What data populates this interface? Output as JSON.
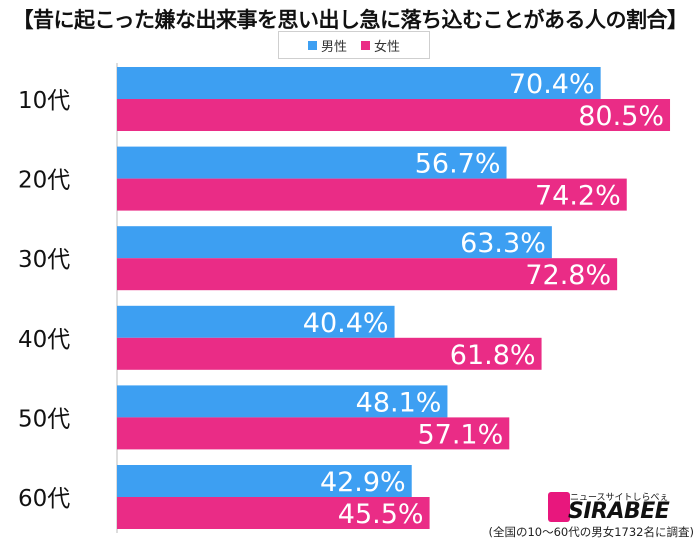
{
  "title": "【昔に起こった嫌な出来事を思い出し急に落ち込むことがある人の割合】",
  "legend": {
    "male": "男性",
    "female": "女性"
  },
  "colors": {
    "male": "#3d9ff2",
    "female": "#ea2c86"
  },
  "chart_data": {
    "type": "bar",
    "orientation": "horizontal",
    "title": "【昔に起こった嫌な出来事を思い出し急に落ち込むことがある人の割合】",
    "categories": [
      "10代",
      "20代",
      "30代",
      "40代",
      "50代",
      "60代"
    ],
    "series": [
      {
        "name": "男性",
        "values": [
          70.4,
          56.7,
          63.3,
          40.4,
          48.1,
          42.9
        ],
        "labels": [
          "70.4%",
          "56.7%",
          "63.3%",
          "40.4%",
          "48.1%",
          "42.9%"
        ]
      },
      {
        "name": "女性",
        "values": [
          80.5,
          74.2,
          72.8,
          61.8,
          57.1,
          45.5
        ],
        "labels": [
          "80.5%",
          "74.2%",
          "72.8%",
          "61.8%",
          "57.1%",
          "45.5%"
        ]
      }
    ],
    "xlim": [
      0,
      100
    ],
    "unit": "%",
    "legend_position": "top-center",
    "grid": false
  },
  "logo": {
    "tagline": "ニュースサイトしらべぇ",
    "name": "SIRABEE"
  },
  "footnote": "(全国の10〜60代の男女1732名に調査)"
}
